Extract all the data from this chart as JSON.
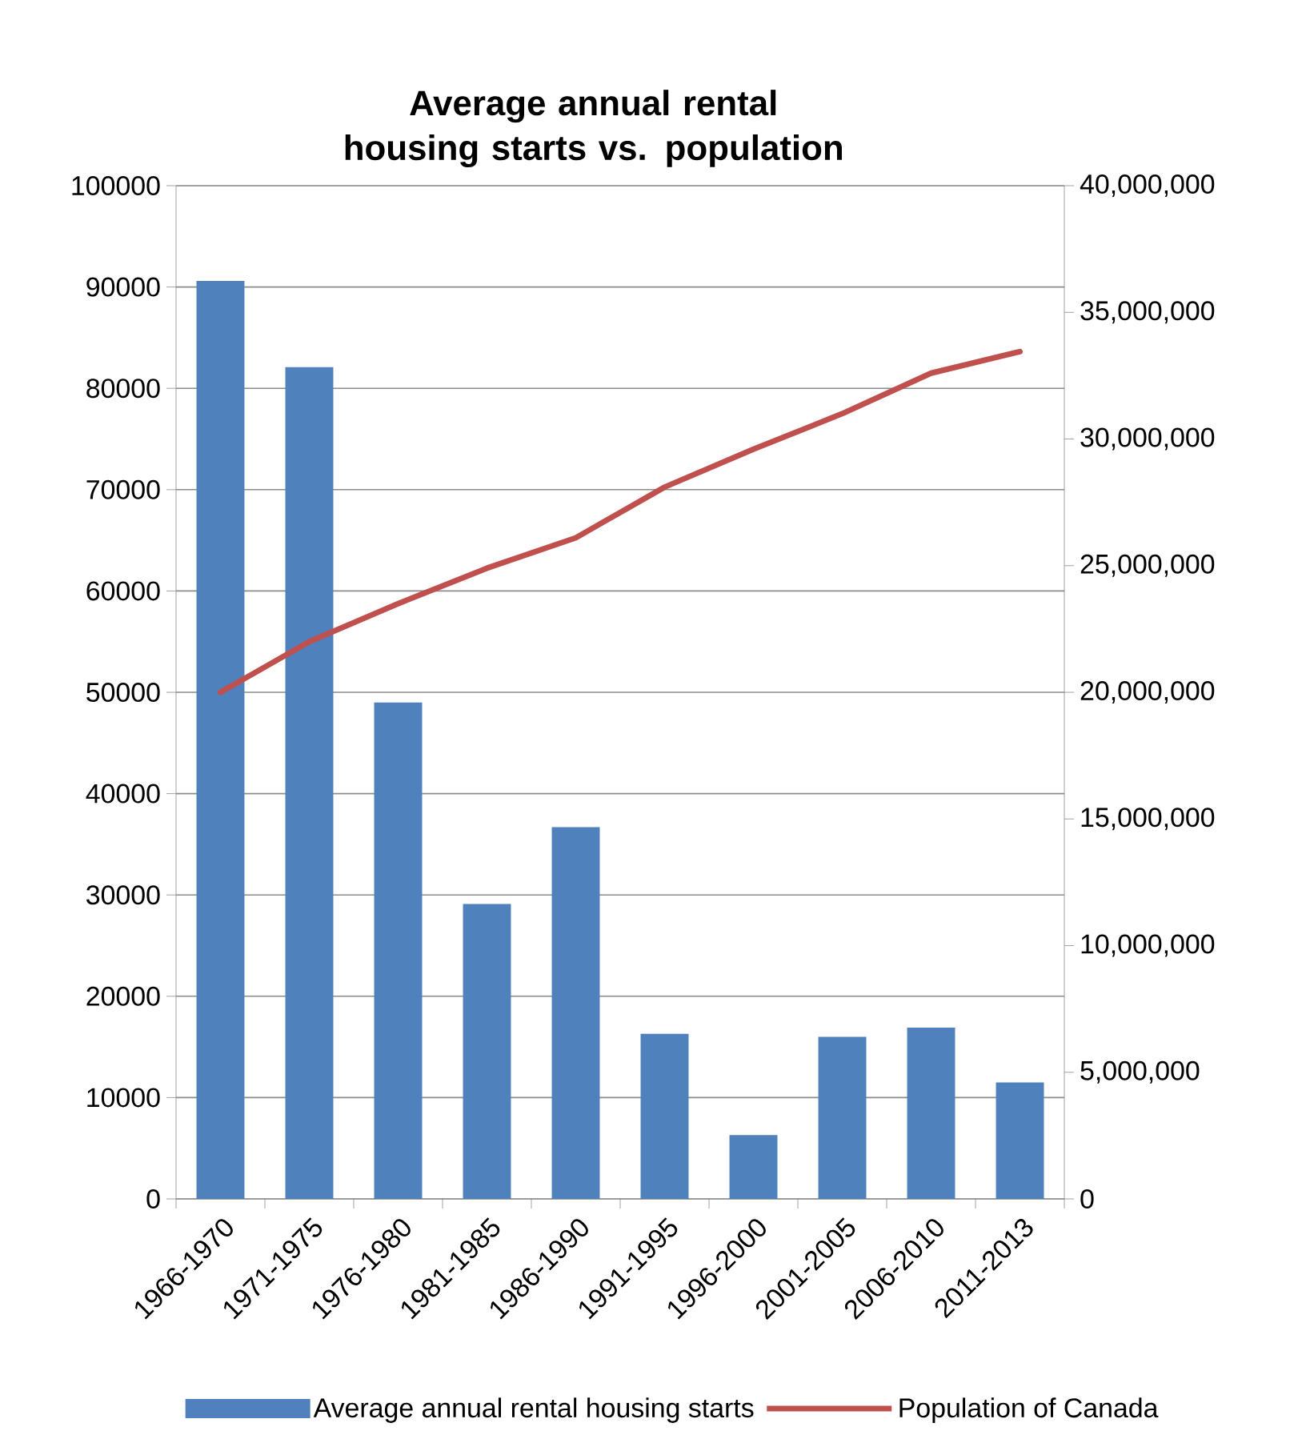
{
  "chart_data": {
    "type": "bar",
    "title": "Average annual rental housing starts vs. population",
    "categories": [
      "1966-1970",
      "1971-1975",
      "1976-1980",
      "1981-1985",
      "1986-1990",
      "1991-1995",
      "1996-2000",
      "2001-2005",
      "2006-2010",
      "2011-2013"
    ],
    "series": [
      {
        "name": "Average annual rental housing starts",
        "color": "#4f81bd",
        "values": [
          90600,
          82100,
          49000,
          29100,
          36700,
          16300,
          6300,
          16000,
          16900,
          11500
        ]
      },
      {
        "name": "Population of Canada",
        "type": "line",
        "axis": "y2",
        "color": "#c0504d",
        "values": [
          20000000,
          22000000,
          23500000,
          24900000,
          26100000,
          28100000,
          29600000,
          31000000,
          32600000,
          33450000
        ]
      }
    ],
    "ylim": [
      0,
      100000
    ],
    "yticks": [
      0,
      10000,
      20000,
      30000,
      40000,
      50000,
      60000,
      70000,
      80000,
      90000,
      100000
    ],
    "y2lim": [
      0,
      40000000
    ],
    "y2ticks": [
      0,
      {
        "value": 5000000,
        "label": "5,000,000"
      },
      {
        "value": 10000000,
        "label": "10,000,000"
      },
      {
        "value": 15000000,
        "label": "15,000,000"
      },
      {
        "value": 20000000,
        "label": "20,000,000"
      },
      {
        "value": 25000000,
        "label": "25,000,000"
      },
      {
        "value": 30000000,
        "label": "30,000,000"
      },
      {
        "value": 35000000,
        "label": "35,000,000"
      },
      {
        "value": 40000000,
        "label": "40,000,000"
      }
    ],
    "grid": "y",
    "legend": "bottom"
  }
}
